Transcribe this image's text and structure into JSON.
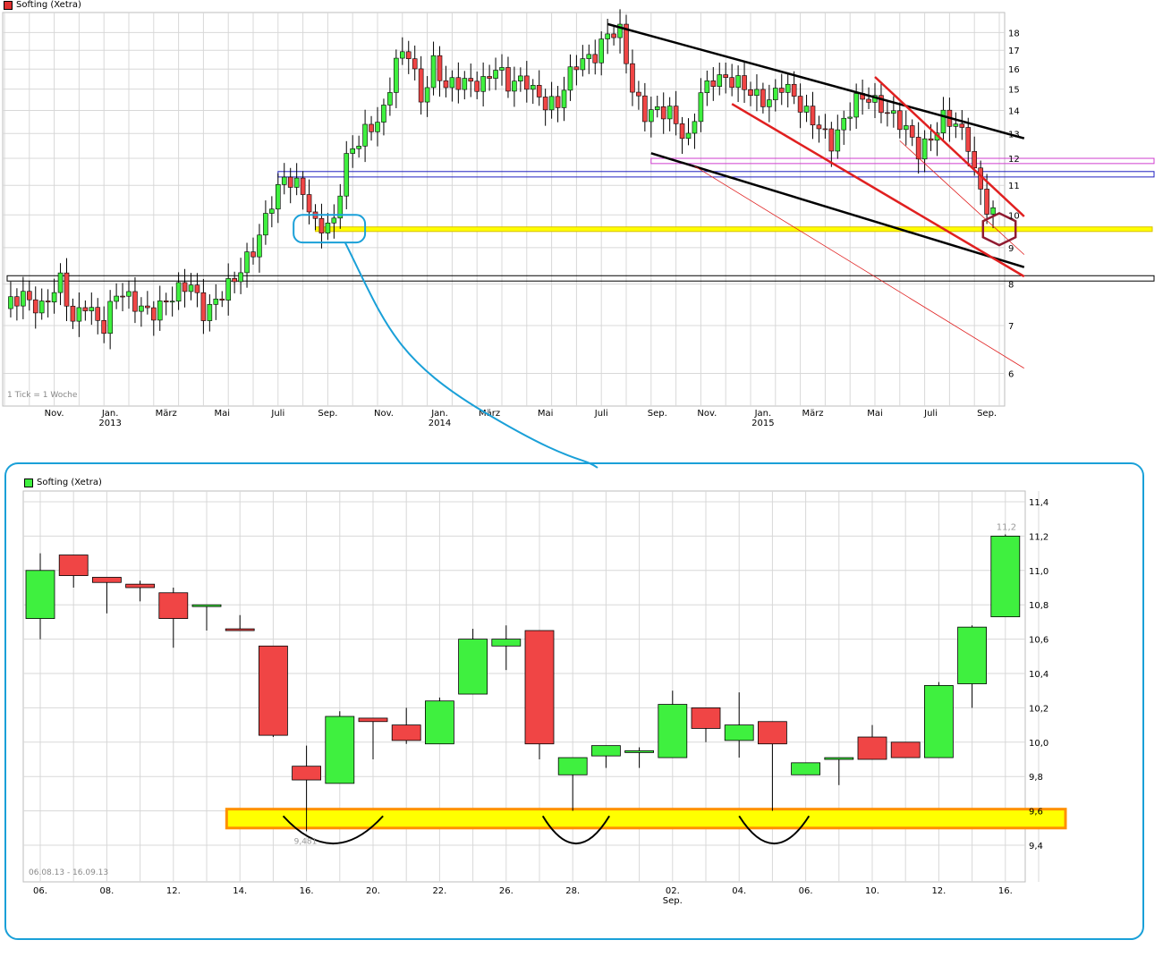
{
  "colors": {
    "up": "#3ff03f",
    "down": "#f04545",
    "grid": "#d8d8d8",
    "highlight_fill": "#ffff00",
    "highlight_border": "#ff9000",
    "callout": "#1aa0d8",
    "trend_black": "#000000",
    "trend_red": "#e02020",
    "level_blue": "#2020c0",
    "level_magenta": "#d040d0",
    "hexagon": "#901a30"
  },
  "top_chart": {
    "legend": "Softing (Xetra)",
    "legend_swatch": "#e03030",
    "note": "1 Tick = 1 Woche",
    "chart_data": {
      "type": "candlestick",
      "y_scale": "log",
      "ylim": [
        5.4,
        19.2
      ],
      "y_ticks": [
        6,
        7,
        8,
        9,
        10,
        11,
        12,
        13,
        14,
        15,
        16,
        17,
        18
      ],
      "x_labels": [
        {
          "week": 8,
          "label": "Nov."
        },
        {
          "week": 17,
          "label": "Jan.",
          "sub": "2013"
        },
        {
          "week": 26,
          "label": "März"
        },
        {
          "week": 35,
          "label": "Mai"
        },
        {
          "week": 44,
          "label": "Juli"
        },
        {
          "week": 52,
          "label": "Sep."
        },
        {
          "week": 61,
          "label": "Nov."
        },
        {
          "week": 70,
          "label": "Jan.",
          "sub": "2014"
        },
        {
          "week": 78,
          "label": "März"
        },
        {
          "week": 87,
          "label": "Mai"
        },
        {
          "week": 96,
          "label": "Juli"
        },
        {
          "week": 105,
          "label": "Sep."
        },
        {
          "week": 113,
          "label": "Nov."
        },
        {
          "week": 122,
          "label": "Jan.",
          "sub": "2015"
        },
        {
          "week": 130,
          "label": "März"
        },
        {
          "week": 140,
          "label": "Mai"
        },
        {
          "week": 149,
          "label": "Juli"
        },
        {
          "week": 158,
          "label": "Sep."
        }
      ],
      "waypoints": [
        [
          0,
          7.3
        ],
        [
          3,
          7.7
        ],
        [
          6,
          7.5
        ],
        [
          9,
          8.0
        ],
        [
          11,
          7.0
        ],
        [
          13,
          7.6
        ],
        [
          16,
          7.0
        ],
        [
          18,
          7.7
        ],
        [
          21,
          7.5
        ],
        [
          24,
          7.4
        ],
        [
          27,
          7.6
        ],
        [
          30,
          8.0
        ],
        [
          32,
          7.4
        ],
        [
          34,
          7.6
        ],
        [
          37,
          8.0
        ],
        [
          40,
          9.0
        ],
        [
          43,
          10.5
        ],
        [
          45,
          11.1
        ],
        [
          48,
          10.8
        ],
        [
          50,
          9.8
        ],
        [
          53,
          9.7
        ],
        [
          55,
          11.8
        ],
        [
          58,
          13.2
        ],
        [
          61,
          14.0
        ],
        [
          63,
          16.2
        ],
        [
          65,
          16.8
        ],
        [
          67,
          14.6
        ],
        [
          69,
          16.5
        ],
        [
          71,
          15.0
        ],
        [
          74,
          15.2
        ],
        [
          77,
          15.5
        ],
        [
          79,
          16.2
        ],
        [
          81,
          15.0
        ],
        [
          84,
          15.4
        ],
        [
          87,
          14.5
        ],
        [
          89,
          14.2
        ],
        [
          92,
          16.2
        ],
        [
          95,
          17.0
        ],
        [
          97,
          18.0
        ],
        [
          99,
          17.8
        ],
        [
          101,
          14.8
        ],
        [
          103,
          14.0
        ],
        [
          105,
          14.2
        ],
        [
          107,
          13.8
        ],
        [
          109,
          12.8
        ],
        [
          110,
          12.6
        ],
        [
          112,
          15.0
        ],
        [
          114,
          15.7
        ],
        [
          117,
          15.2
        ],
        [
          120,
          14.9
        ],
        [
          123,
          14.6
        ],
        [
          125,
          15.1
        ],
        [
          128,
          14.1
        ],
        [
          131,
          13.5
        ],
        [
          133,
          12.6
        ],
        [
          135,
          13.3
        ],
        [
          137,
          14.4
        ],
        [
          139,
          14.8
        ],
        [
          141,
          14.3
        ],
        [
          143,
          13.6
        ],
        [
          145,
          13.0
        ],
        [
          147,
          12.3
        ],
        [
          149,
          13.0
        ],
        [
          151,
          13.7
        ],
        [
          153,
          13.2
        ],
        [
          155,
          12.5
        ],
        [
          156,
          11.5
        ],
        [
          158,
          10.4
        ],
        [
          159,
          10.1
        ]
      ]
    },
    "overlays": {
      "black_upper": [
        [
          97,
          18.5
        ],
        [
          164,
          12.8
        ]
      ],
      "black_lower": [
        [
          104,
          12.2
        ],
        [
          164,
          8.45
        ]
      ],
      "red_upper": [
        [
          140,
          15.6
        ],
        [
          164,
          9.95
        ]
      ],
      "red_lower": [
        [
          117,
          14.3
        ],
        [
          164,
          8.2
        ]
      ],
      "red_thin_a": [
        [
          144,
          12.7
        ],
        [
          164,
          8.8
        ]
      ],
      "red_thin_b": [
        [
          111,
          11.7
        ],
        [
          164,
          6.1
        ]
      ],
      "hexagon_center": [
        160,
        9.55
      ],
      "yellow_band": {
        "from_week": 50,
        "low": 9.48,
        "high": 9.62
      },
      "black_box": {
        "from_week": 0,
        "low": 8.08,
        "high": 8.22
      },
      "blue_box": {
        "from_week": 44,
        "low": 11.3,
        "high": 11.5
      },
      "magenta_box": {
        "from_week": 104,
        "low": 11.8,
        "high": 12.0
      },
      "callout_ellipse": {
        "week_from": 46.5,
        "week_to": 58,
        "low": 9.15,
        "high": 10.0
      }
    }
  },
  "bottom_chart": {
    "legend": "Softing (Xetra)",
    "legend_swatch": "#3ff03f",
    "date_range": "06.08.13 - 16.09.13",
    "last_value_label": "11,2",
    "low_value_label": "9,481",
    "chart_data": {
      "type": "candlestick",
      "ylim": [
        9.2,
        11.5
      ],
      "y_ticks": [
        "9,4",
        "9,6",
        "9,8",
        "10,0",
        "10,2",
        "10,4",
        "10,6",
        "10,8",
        "11,0",
        "11,2",
        "11,4"
      ],
      "y_tick_values": [
        9.4,
        9.6,
        9.8,
        10.0,
        10.2,
        10.4,
        10.6,
        10.8,
        11.0,
        11.2,
        11.4
      ],
      "x_labels": [
        {
          "index": 0,
          "label": "06."
        },
        {
          "index": 2,
          "label": "08."
        },
        {
          "index": 4,
          "label": "12."
        },
        {
          "index": 6,
          "label": "14."
        },
        {
          "index": 8,
          "label": "16."
        },
        {
          "index": 10,
          "label": "20."
        },
        {
          "index": 12,
          "label": "22."
        },
        {
          "index": 14,
          "label": "26."
        },
        {
          "index": 16,
          "label": "28."
        },
        {
          "index": 19,
          "label": "02.",
          "sub": "Sep."
        },
        {
          "index": 21,
          "label": "04."
        },
        {
          "index": 23,
          "label": "06."
        },
        {
          "index": 25,
          "label": "10."
        },
        {
          "index": 27,
          "label": "12."
        },
        {
          "index": 29,
          "label": "16."
        }
      ],
      "candles": [
        {
          "o": 10.72,
          "h": 11.1,
          "l": 10.6,
          "c": 11.0
        },
        {
          "o": 11.09,
          "h": 11.09,
          "l": 10.9,
          "c": 10.97
        },
        {
          "o": 10.96,
          "h": 10.96,
          "l": 10.75,
          "c": 10.93
        },
        {
          "o": 10.92,
          "h": 10.94,
          "l": 10.82,
          "c": 10.9
        },
        {
          "o": 10.87,
          "h": 10.9,
          "l": 10.55,
          "c": 10.72
        },
        {
          "o": 10.8,
          "h": 10.8,
          "l": 10.65,
          "c": 10.8
        },
        {
          "o": 10.66,
          "h": 10.74,
          "l": 10.65,
          "c": 10.65
        },
        {
          "o": 10.56,
          "h": 10.56,
          "l": 10.03,
          "c": 10.04
        },
        {
          "o": 9.86,
          "h": 9.98,
          "l": 9.481,
          "c": 9.78
        },
        {
          "o": 9.76,
          "h": 10.18,
          "l": 9.76,
          "c": 10.15
        },
        {
          "o": 10.14,
          "h": 10.14,
          "l": 9.9,
          "c": 10.12
        },
        {
          "o": 10.1,
          "h": 10.2,
          "l": 9.99,
          "c": 10.01
        },
        {
          "o": 9.99,
          "h": 10.26,
          "l": 9.99,
          "c": 10.24
        },
        {
          "o": 10.28,
          "h": 10.66,
          "l": 10.28,
          "c": 10.6
        },
        {
          "o": 10.56,
          "h": 10.68,
          "l": 10.42,
          "c": 10.6
        },
        {
          "o": 10.65,
          "h": 10.65,
          "l": 9.9,
          "c": 9.99
        },
        {
          "o": 9.81,
          "h": 9.91,
          "l": 9.6,
          "c": 9.91
        },
        {
          "o": 9.92,
          "h": 9.98,
          "l": 9.85,
          "c": 9.98
        },
        {
          "o": 9.95,
          "h": 9.97,
          "l": 9.85,
          "c": 9.95
        },
        {
          "o": 9.91,
          "h": 10.3,
          "l": 9.91,
          "c": 10.22
        },
        {
          "o": 10.2,
          "h": 10.2,
          "l": 10.0,
          "c": 10.08
        },
        {
          "o": 10.01,
          "h": 10.29,
          "l": 9.91,
          "c": 10.1
        },
        {
          "o": 10.12,
          "h": 10.12,
          "l": 9.6,
          "c": 9.99
        },
        {
          "o": 9.81,
          "h": 9.88,
          "l": 9.81,
          "c": 9.88
        },
        {
          "o": 9.9,
          "h": 9.91,
          "l": 9.75,
          "c": 9.91
        },
        {
          "o": 10.03,
          "h": 10.1,
          "l": 9.9,
          "c": 9.9
        },
        {
          "o": 10.0,
          "h": 10.0,
          "l": 9.91,
          "c": 9.91
        },
        {
          "o": 9.91,
          "h": 10.35,
          "l": 9.91,
          "c": 10.33
        },
        {
          "o": 10.34,
          "h": 10.68,
          "l": 10.2,
          "c": 10.67
        },
        {
          "o": 10.73,
          "h": 11.21,
          "l": 10.73,
          "c": 11.2
        }
      ],
      "support_band": {
        "from_index": 5.6,
        "low": 9.5,
        "high": 9.61
      }
    },
    "arcs": [
      {
        "from": 7.3,
        "to": 10.3
      },
      {
        "from": 15.1,
        "to": 17.1
      },
      {
        "from": 21.0,
        "to": 23.1
      }
    ]
  }
}
